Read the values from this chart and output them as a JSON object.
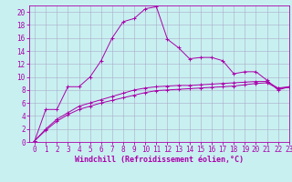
{
  "xlabel": "Windchill (Refroidissement éolien,°C)",
  "background_color": "#c8f0f0",
  "grid_color": "#aaaacc",
  "line_color": "#aa00aa",
  "x_data": [
    0,
    1,
    2,
    3,
    4,
    5,
    6,
    7,
    8,
    9,
    10,
    11,
    12,
    13,
    14,
    15,
    16,
    17,
    18,
    19,
    20,
    21,
    22,
    23
  ],
  "line1": [
    0.2,
    5.0,
    5.0,
    8.5,
    8.5,
    10.0,
    12.5,
    16.0,
    18.5,
    19.0,
    20.5,
    20.8,
    15.8,
    14.5,
    12.8,
    13.0,
    13.0,
    12.5,
    10.5,
    10.8,
    10.8,
    9.5,
    8.0,
    8.5
  ],
  "line2": [
    0.2,
    2.0,
    3.5,
    4.5,
    5.5,
    6.0,
    6.5,
    7.0,
    7.5,
    8.0,
    8.3,
    8.5,
    8.6,
    8.7,
    8.7,
    8.8,
    8.9,
    9.0,
    9.1,
    9.2,
    9.3,
    9.3,
    8.3,
    8.5
  ],
  "line3": [
    0.2,
    1.8,
    3.2,
    4.2,
    5.0,
    5.5,
    6.0,
    6.4,
    6.8,
    7.2,
    7.6,
    7.9,
    8.0,
    8.1,
    8.2,
    8.3,
    8.4,
    8.5,
    8.6,
    8.8,
    9.0,
    9.1,
    8.2,
    8.4
  ],
  "ylim": [
    0,
    21
  ],
  "xlim": [
    -0.5,
    23
  ],
  "yticks": [
    0,
    2,
    4,
    6,
    8,
    10,
    12,
    14,
    16,
    18,
    20
  ],
  "xticks": [
    0,
    1,
    2,
    3,
    4,
    5,
    6,
    7,
    8,
    9,
    10,
    11,
    12,
    13,
    14,
    15,
    16,
    17,
    18,
    19,
    20,
    21,
    22,
    23
  ],
  "font_size": 5.5,
  "xlabel_fontsize": 6.0
}
